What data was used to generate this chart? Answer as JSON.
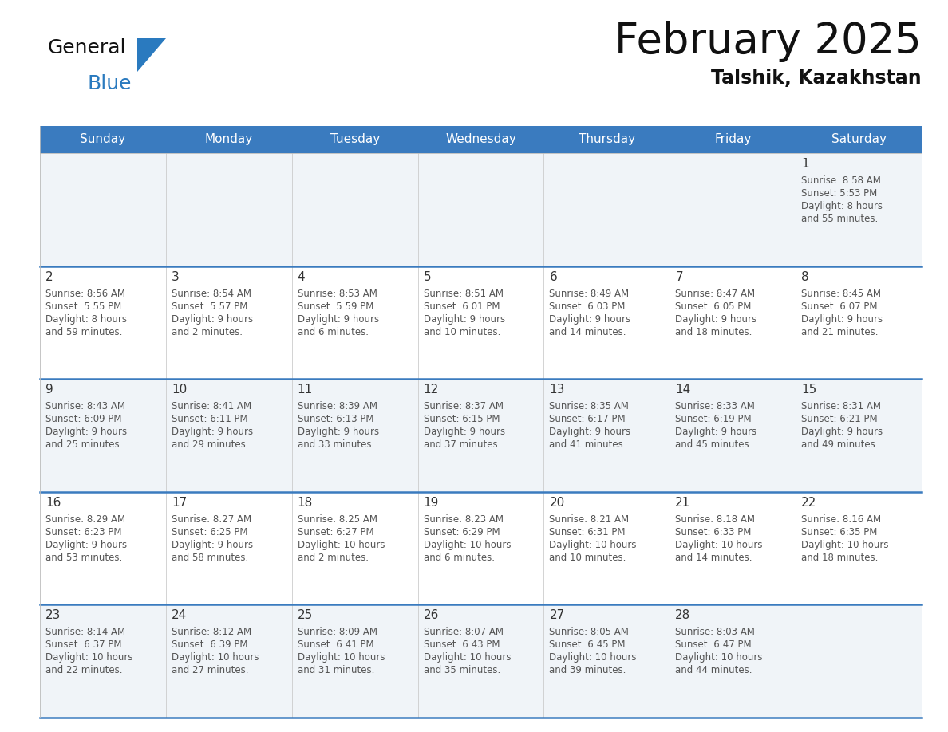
{
  "title": "February 2025",
  "subtitle": "Talshik, Kazakhstan",
  "header_color": "#3a7bbf",
  "header_text_color": "#ffffff",
  "day_names": [
    "Sunday",
    "Monday",
    "Tuesday",
    "Wednesday",
    "Thursday",
    "Friday",
    "Saturday"
  ],
  "cell_bg_even": "#f0f4f8",
  "cell_bg_odd": "#ffffff",
  "border_color": "#3a7bbf",
  "sep_line_color": "#3a7bbf",
  "day_number_color": "#333333",
  "text_color": "#555555",
  "logo_color1": "#111111",
  "logo_color2": "#2a7abf",
  "logo_tri_color": "#2a7abf",
  "days": [
    {
      "day": 1,
      "col": 6,
      "row": 0,
      "sunrise": "8:58 AM",
      "sunset": "5:53 PM",
      "daylight": "8 hours",
      "daylight2": "and 55 minutes."
    },
    {
      "day": 2,
      "col": 0,
      "row": 1,
      "sunrise": "8:56 AM",
      "sunset": "5:55 PM",
      "daylight": "8 hours",
      "daylight2": "and 59 minutes."
    },
    {
      "day": 3,
      "col": 1,
      "row": 1,
      "sunrise": "8:54 AM",
      "sunset": "5:57 PM",
      "daylight": "9 hours",
      "daylight2": "and 2 minutes."
    },
    {
      "day": 4,
      "col": 2,
      "row": 1,
      "sunrise": "8:53 AM",
      "sunset": "5:59 PM",
      "daylight": "9 hours",
      "daylight2": "and 6 minutes."
    },
    {
      "day": 5,
      "col": 3,
      "row": 1,
      "sunrise": "8:51 AM",
      "sunset": "6:01 PM",
      "daylight": "9 hours",
      "daylight2": "and 10 minutes."
    },
    {
      "day": 6,
      "col": 4,
      "row": 1,
      "sunrise": "8:49 AM",
      "sunset": "6:03 PM",
      "daylight": "9 hours",
      "daylight2": "and 14 minutes."
    },
    {
      "day": 7,
      "col": 5,
      "row": 1,
      "sunrise": "8:47 AM",
      "sunset": "6:05 PM",
      "daylight": "9 hours",
      "daylight2": "and 18 minutes."
    },
    {
      "day": 8,
      "col": 6,
      "row": 1,
      "sunrise": "8:45 AM",
      "sunset": "6:07 PM",
      "daylight": "9 hours",
      "daylight2": "and 21 minutes."
    },
    {
      "day": 9,
      "col": 0,
      "row": 2,
      "sunrise": "8:43 AM",
      "sunset": "6:09 PM",
      "daylight": "9 hours",
      "daylight2": "and 25 minutes."
    },
    {
      "day": 10,
      "col": 1,
      "row": 2,
      "sunrise": "8:41 AM",
      "sunset": "6:11 PM",
      "daylight": "9 hours",
      "daylight2": "and 29 minutes."
    },
    {
      "day": 11,
      "col": 2,
      "row": 2,
      "sunrise": "8:39 AM",
      "sunset": "6:13 PM",
      "daylight": "9 hours",
      "daylight2": "and 33 minutes."
    },
    {
      "day": 12,
      "col": 3,
      "row": 2,
      "sunrise": "8:37 AM",
      "sunset": "6:15 PM",
      "daylight": "9 hours",
      "daylight2": "and 37 minutes."
    },
    {
      "day": 13,
      "col": 4,
      "row": 2,
      "sunrise": "8:35 AM",
      "sunset": "6:17 PM",
      "daylight": "9 hours",
      "daylight2": "and 41 minutes."
    },
    {
      "day": 14,
      "col": 5,
      "row": 2,
      "sunrise": "8:33 AM",
      "sunset": "6:19 PM",
      "daylight": "9 hours",
      "daylight2": "and 45 minutes."
    },
    {
      "day": 15,
      "col": 6,
      "row": 2,
      "sunrise": "8:31 AM",
      "sunset": "6:21 PM",
      "daylight": "9 hours",
      "daylight2": "and 49 minutes."
    },
    {
      "day": 16,
      "col": 0,
      "row": 3,
      "sunrise": "8:29 AM",
      "sunset": "6:23 PM",
      "daylight": "9 hours",
      "daylight2": "and 53 minutes."
    },
    {
      "day": 17,
      "col": 1,
      "row": 3,
      "sunrise": "8:27 AM",
      "sunset": "6:25 PM",
      "daylight": "9 hours",
      "daylight2": "and 58 minutes."
    },
    {
      "day": 18,
      "col": 2,
      "row": 3,
      "sunrise": "8:25 AM",
      "sunset": "6:27 PM",
      "daylight": "10 hours",
      "daylight2": "and 2 minutes."
    },
    {
      "day": 19,
      "col": 3,
      "row": 3,
      "sunrise": "8:23 AM",
      "sunset": "6:29 PM",
      "daylight": "10 hours",
      "daylight2": "and 6 minutes."
    },
    {
      "day": 20,
      "col": 4,
      "row": 3,
      "sunrise": "8:21 AM",
      "sunset": "6:31 PM",
      "daylight": "10 hours",
      "daylight2": "and 10 minutes."
    },
    {
      "day": 21,
      "col": 5,
      "row": 3,
      "sunrise": "8:18 AM",
      "sunset": "6:33 PM",
      "daylight": "10 hours",
      "daylight2": "and 14 minutes."
    },
    {
      "day": 22,
      "col": 6,
      "row": 3,
      "sunrise": "8:16 AM",
      "sunset": "6:35 PM",
      "daylight": "10 hours",
      "daylight2": "and 18 minutes."
    },
    {
      "day": 23,
      "col": 0,
      "row": 4,
      "sunrise": "8:14 AM",
      "sunset": "6:37 PM",
      "daylight": "10 hours",
      "daylight2": "and 22 minutes."
    },
    {
      "day": 24,
      "col": 1,
      "row": 4,
      "sunrise": "8:12 AM",
      "sunset": "6:39 PM",
      "daylight": "10 hours",
      "daylight2": "and 27 minutes."
    },
    {
      "day": 25,
      "col": 2,
      "row": 4,
      "sunrise": "8:09 AM",
      "sunset": "6:41 PM",
      "daylight": "10 hours",
      "daylight2": "and 31 minutes."
    },
    {
      "day": 26,
      "col": 3,
      "row": 4,
      "sunrise": "8:07 AM",
      "sunset": "6:43 PM",
      "daylight": "10 hours",
      "daylight2": "and 35 minutes."
    },
    {
      "day": 27,
      "col": 4,
      "row": 4,
      "sunrise": "8:05 AM",
      "sunset": "6:45 PM",
      "daylight": "10 hours",
      "daylight2": "and 39 minutes."
    },
    {
      "day": 28,
      "col": 5,
      "row": 4,
      "sunrise": "8:03 AM",
      "sunset": "6:47 PM",
      "daylight": "10 hours",
      "daylight2": "and 44 minutes."
    }
  ]
}
